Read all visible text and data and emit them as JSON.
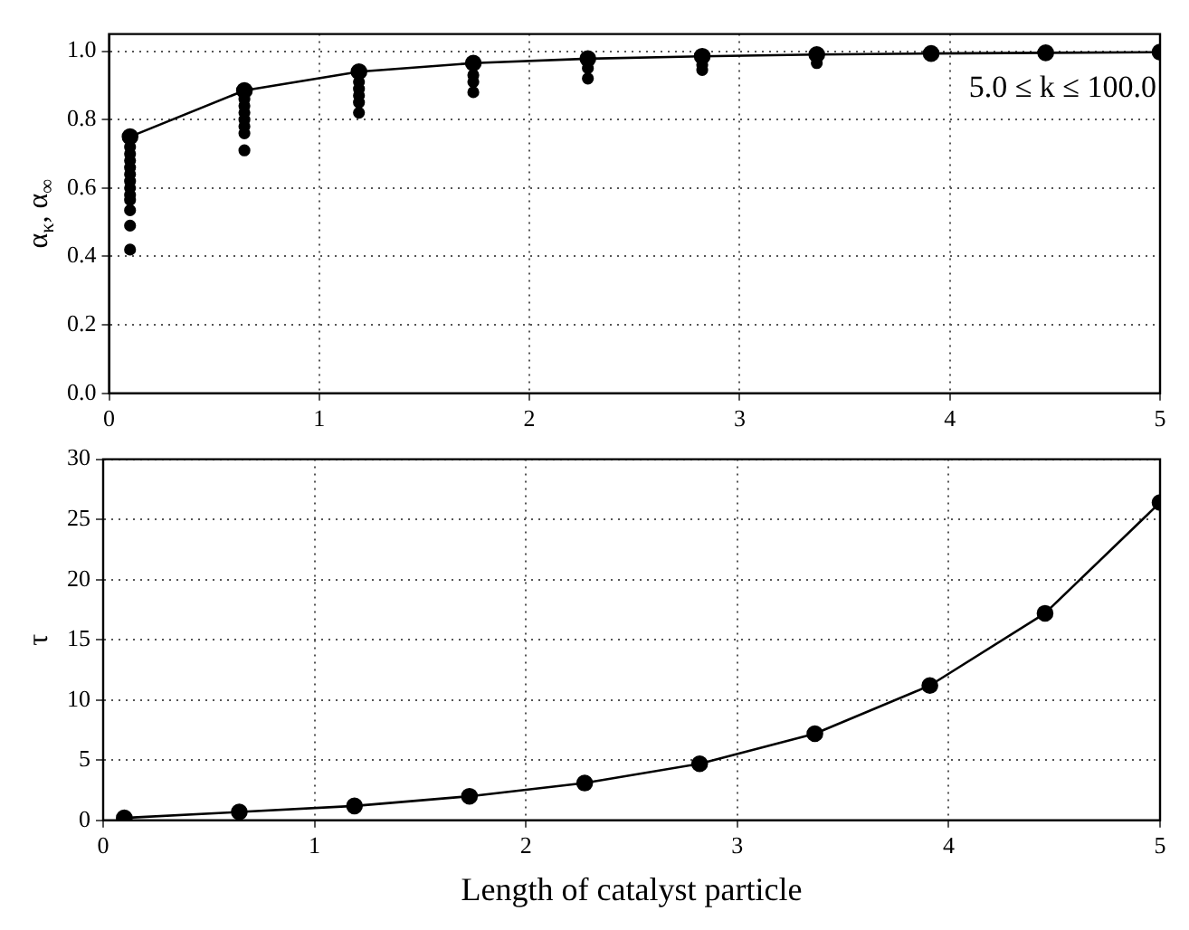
{
  "chart_data": [
    {
      "type": "line",
      "ylabel": "α$_{κ}$, α$_{∞}$",
      "x": [
        0.1,
        0.644,
        1.189,
        1.733,
        2.278,
        2.822,
        3.367,
        3.911,
        4.456,
        5.0
      ],
      "series": [
        {
          "color": "#000000",
          "values": [
            0.75,
            0.885,
            0.94,
            0.965,
            0.978,
            0.985,
            0.99,
            0.993,
            0.995,
            0.997
          ]
        },
        {
          "type": "scatter",
          "color": "#000000",
          "x": [
            0.1,
            0.1,
            0.1,
            0.1,
            0.1,
            0.1,
            0.1,
            0.1,
            0.1,
            0.1,
            0.1,
            0.1,
            0.644,
            0.644,
            0.644,
            0.644,
            0.644,
            0.644,
            0.644,
            1.189,
            1.189,
            1.189,
            1.189,
            1.189,
            1.733,
            1.733,
            1.733,
            2.278,
            2.278,
            2.822,
            2.822,
            3.367
          ],
          "values": [
            0.42,
            0.49,
            0.535,
            0.565,
            0.58,
            0.6,
            0.62,
            0.64,
            0.66,
            0.68,
            0.7,
            0.72,
            0.71,
            0.76,
            0.78,
            0.8,
            0.82,
            0.84,
            0.86,
            0.82,
            0.85,
            0.87,
            0.89,
            0.91,
            0.88,
            0.91,
            0.93,
            0.92,
            0.95,
            0.945,
            0.96,
            0.965
          ]
        }
      ],
      "xlim": [
        0,
        5
      ],
      "xticks": [
        0,
        1,
        2,
        3,
        4,
        5
      ],
      "ylim": [
        0,
        1.05
      ],
      "yticks": [
        {
          "value": 0,
          "label": "0.0"
        },
        {
          "value": 0.2,
          "label": "0.2"
        },
        {
          "value": 0.4,
          "label": "0.4"
        },
        {
          "value": 0.6,
          "label": "0.6"
        },
        {
          "value": 0.8,
          "label": "0.8"
        },
        {
          "value": 1,
          "label": "1.0"
        }
      ],
      "grid": true,
      "marker": "circle",
      "legend": false,
      "annotations": [
        "5.0 ≤ k ≤ 100.0"
      ]
    },
    {
      "type": "line",
      "ylabel": "τ",
      "xlabel": "Length of catalyst particle",
      "x": [
        0.1,
        0.644,
        1.189,
        1.733,
        2.278,
        2.822,
        3.367,
        3.911,
        4.456,
        5.0
      ],
      "series": [
        {
          "color": "#000000",
          "values": [
            0.2,
            0.7,
            1.2,
            2.0,
            3.1,
            4.7,
            7.2,
            11.2,
            17.2,
            26.4
          ]
        }
      ],
      "xlim": [
        0,
        5
      ],
      "xticks": [
        0,
        1,
        2,
        3,
        4,
        5
      ],
      "ylim": [
        0,
        30
      ],
      "yticks": [
        0,
        5,
        10,
        15,
        20,
        25,
        30
      ],
      "grid": true,
      "marker": "circle",
      "legend": false
    }
  ]
}
